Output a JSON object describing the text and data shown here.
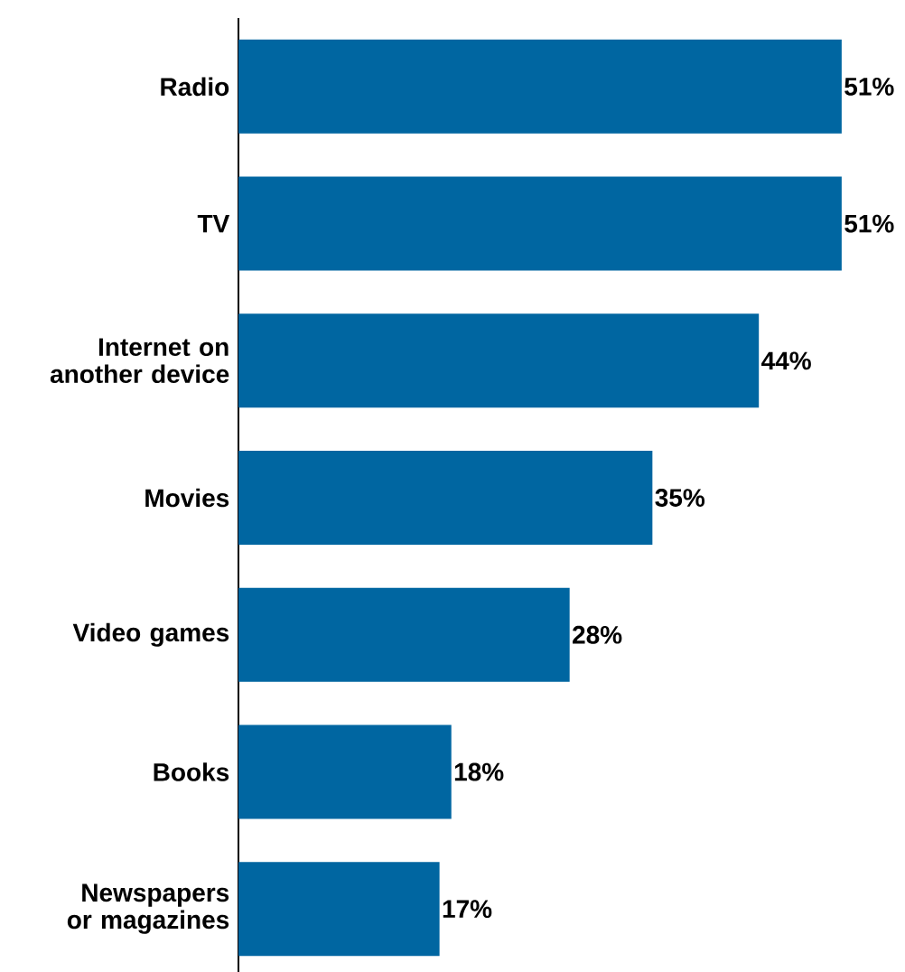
{
  "chart_data": {
    "type": "bar",
    "orientation": "horizontal",
    "categories": [
      "Radio",
      "TV",
      "Internet on another device",
      "Movies",
      "Video games",
      "Books",
      "Newspapers or magazines"
    ],
    "values": [
      51,
      51,
      44,
      35,
      28,
      18,
      17
    ],
    "value_labels": [
      "51%",
      "51%",
      "44%",
      "35%",
      "28%",
      "18%",
      "17%"
    ],
    "color": "#0066a1"
  }
}
